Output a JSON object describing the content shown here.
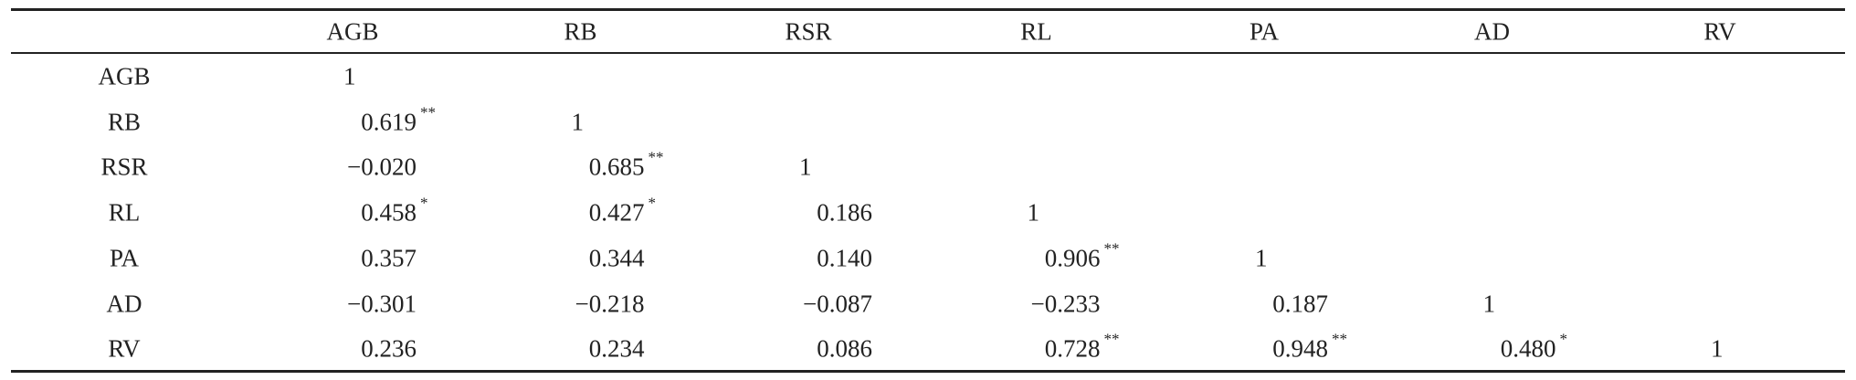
{
  "table": {
    "header": [
      "AGB",
      "RB",
      "RSR",
      "RL",
      "PA",
      "AD",
      "RV"
    ],
    "rows": [
      {
        "label": "AGB",
        "cells": [
          {
            "text": "1"
          }
        ]
      },
      {
        "label": "RB",
        "cells": [
          {
            "text": "0.619",
            "sig": "**"
          },
          {
            "text": "1"
          }
        ]
      },
      {
        "label": "RSR",
        "cells": [
          {
            "text": "−0.020"
          },
          {
            "text": "0.685",
            "sig": "**"
          },
          {
            "text": "1"
          }
        ]
      },
      {
        "label": "RL",
        "cells": [
          {
            "text": "0.458",
            "sig": "*"
          },
          {
            "text": "0.427",
            "sig": "*"
          },
          {
            "text": "0.186"
          },
          {
            "text": "1"
          }
        ]
      },
      {
        "label": "PA",
        "cells": [
          {
            "text": "0.357"
          },
          {
            "text": "0.344"
          },
          {
            "text": "0.140"
          },
          {
            "text": "0.906",
            "sig": "**"
          },
          {
            "text": "1"
          }
        ]
      },
      {
        "label": "AD",
        "cells": [
          {
            "text": "−0.301"
          },
          {
            "text": "−0.218"
          },
          {
            "text": "−0.087"
          },
          {
            "text": "−0.233"
          },
          {
            "text": "0.187"
          },
          {
            "text": "1"
          }
        ]
      },
      {
        "label": "RV",
        "cells": [
          {
            "text": "0.236"
          },
          {
            "text": "0.234"
          },
          {
            "text": "0.086"
          },
          {
            "text": "0.728",
            "sig": "**"
          },
          {
            "text": "0.948",
            "sig": "**"
          },
          {
            "text": "0.480",
            "sig": "*"
          },
          {
            "text": "1"
          }
        ]
      }
    ]
  }
}
